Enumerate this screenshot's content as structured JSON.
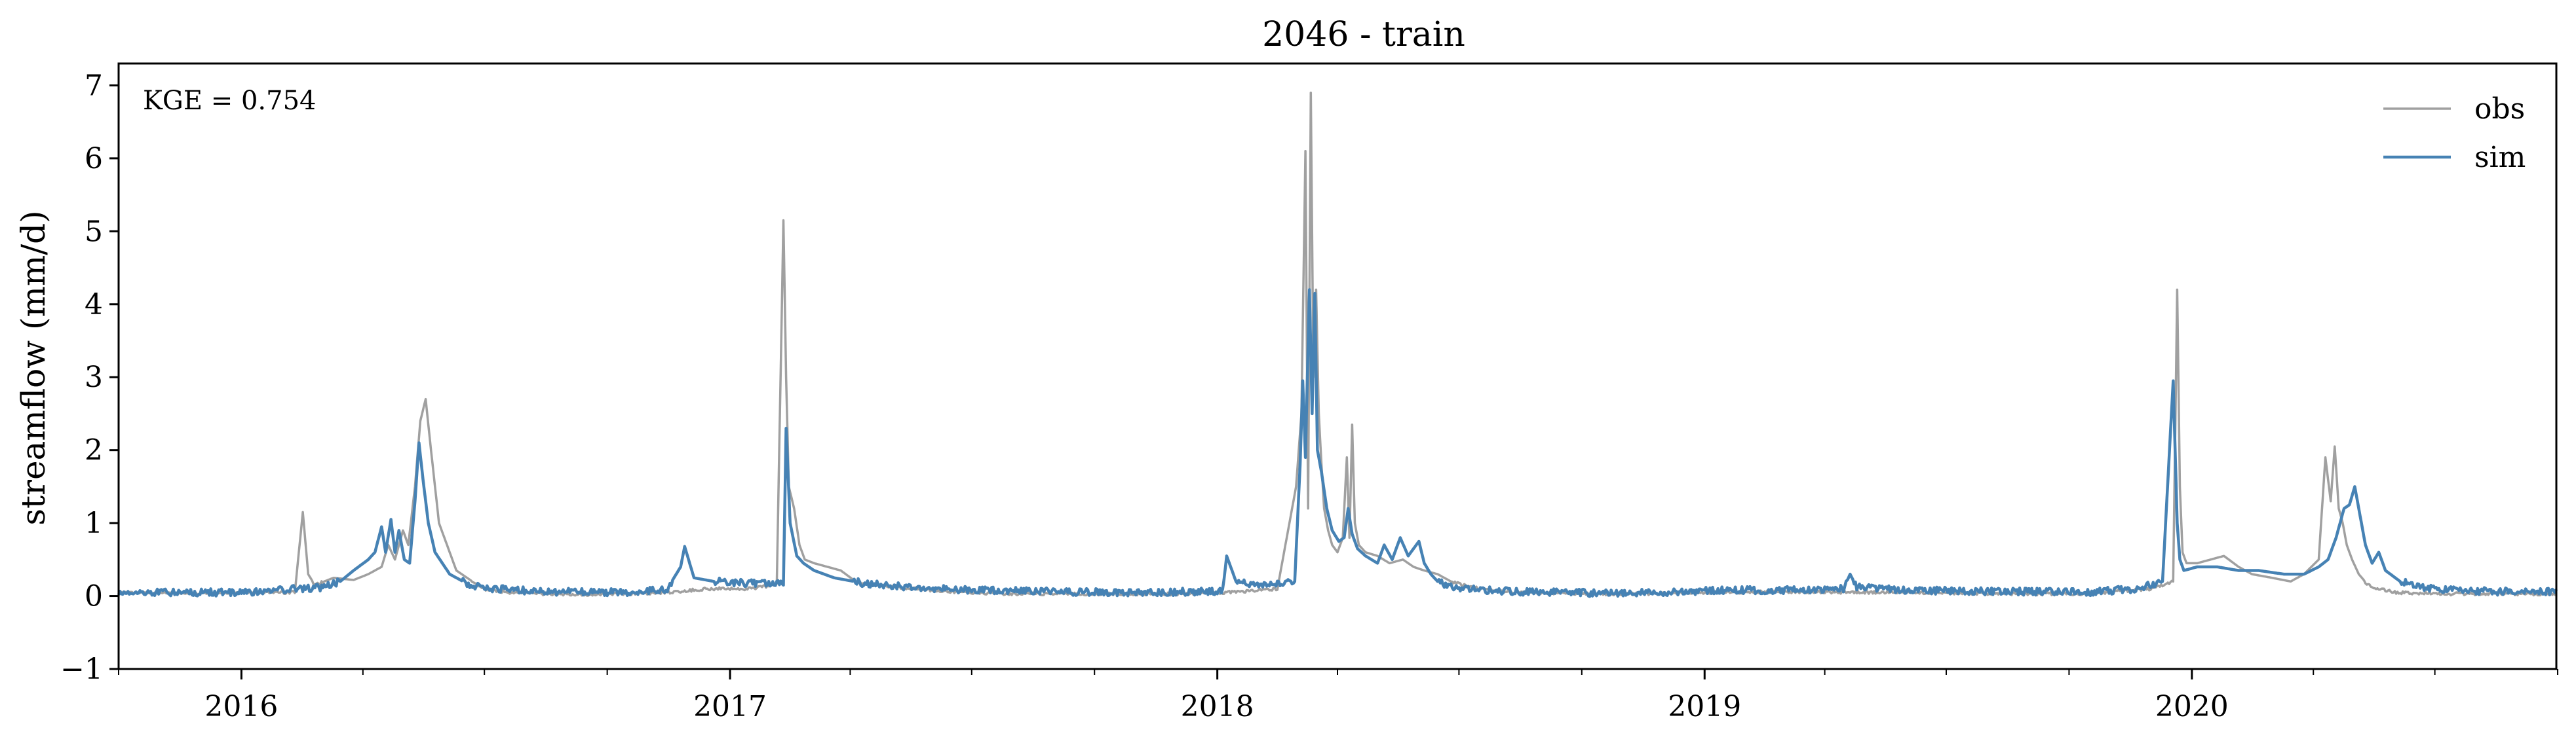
{
  "chart_data": {
    "type": "line",
    "title": "2046 - train",
    "xlabel": "",
    "ylabel": "streamflow (mm/d)",
    "xlim": [
      "2015-10-01",
      "2020-09-30"
    ],
    "ylim": [
      -1,
      7.3
    ],
    "x_ticks": [
      "2016",
      "2017",
      "2018",
      "2019",
      "2020"
    ],
    "y_ticks": [
      "−1",
      "0",
      "1",
      "2",
      "3",
      "4",
      "5",
      "6",
      "7"
    ],
    "grid": false,
    "legend_position": "top-right",
    "annotation": "KGE = 0.754",
    "colors": {
      "obs": "#a0a0a0",
      "sim": "#4682b4"
    },
    "series": [
      {
        "name": "obs",
        "x": [
          "2015-10-01",
          "2015-12-01",
          "2016-02-10",
          "2016-02-16",
          "2016-02-20",
          "2016-02-25",
          "2016-03-10",
          "2016-03-25",
          "2016-04-05",
          "2016-04-15",
          "2016-04-20",
          "2016-04-25",
          "2016-05-01",
          "2016-05-05",
          "2016-05-10",
          "2016-05-14",
          "2016-05-18",
          "2016-05-22",
          "2016-05-28",
          "2016-06-10",
          "2016-06-30",
          "2016-07-20",
          "2016-08-15",
          "2016-09-15",
          "2016-10-15",
          "2016-11-15",
          "2016-12-15",
          "2017-01-15",
          "2017-02-05",
          "2017-02-10",
          "2017-02-12",
          "2017-02-14",
          "2017-02-18",
          "2017-02-22",
          "2017-02-26",
          "2017-03-05",
          "2017-03-15",
          "2017-03-25",
          "2017-04-05",
          "2017-04-20",
          "2017-05-20",
          "2017-06-20",
          "2017-08-01",
          "2017-09-15",
          "2017-10-30",
          "2017-12-10",
          "2018-01-10",
          "2018-02-15",
          "2018-03-01",
          "2018-03-05",
          "2018-03-08",
          "2018-03-10",
          "2018-03-12",
          "2018-03-14",
          "2018-03-16",
          "2018-03-18",
          "2018-03-20",
          "2018-03-22",
          "2018-03-25",
          "2018-03-28",
          "2018-04-01",
          "2018-04-05",
          "2018-04-08",
          "2018-04-10",
          "2018-04-12",
          "2018-04-14",
          "2018-04-17",
          "2018-04-22",
          "2018-05-01",
          "2018-05-10",
          "2018-05-20",
          "2018-05-28",
          "2018-06-05",
          "2018-06-15",
          "2018-06-25",
          "2018-07-10",
          "2018-07-25",
          "2018-08-15",
          "2018-09-15",
          "2018-10-15",
          "2018-11-15",
          "2018-12-15",
          "2019-01-20",
          "2019-03-01",
          "2019-04-20",
          "2019-06-01",
          "2019-07-15",
          "2019-09-01",
          "2019-10-15",
          "2019-12-01",
          "2019-12-18",
          "2019-12-21",
          "2019-12-23",
          "2019-12-25",
          "2019-12-28",
          "2020-01-05",
          "2020-01-15",
          "2020-01-25",
          "2020-02-05",
          "2020-02-15",
          "2020-03-01",
          "2020-03-15",
          "2020-03-25",
          "2020-04-05",
          "2020-04-10",
          "2020-04-14",
          "2020-04-17",
          "2020-04-20",
          "2020-04-23",
          "2020-04-26",
          "2020-04-30",
          "2020-05-05",
          "2020-05-12",
          "2020-05-20",
          "2020-06-01",
          "2020-06-15",
          "2020-07-10",
          "2020-08-10",
          "2020-09-30"
        ],
        "y": [
          0.05,
          0.04,
          0.05,
          1.15,
          0.3,
          0.15,
          0.25,
          0.22,
          0.3,
          0.4,
          0.7,
          0.5,
          0.9,
          0.7,
          1.5,
          2.4,
          2.7,
          2.0,
          1.0,
          0.35,
          0.1,
          0.05,
          0.03,
          0.02,
          0.03,
          0.05,
          0.1,
          0.1,
          0.15,
          5.15,
          3.0,
          1.5,
          1.2,
          0.7,
          0.5,
          0.45,
          0.4,
          0.35,
          0.2,
          0.15,
          0.1,
          0.05,
          0.03,
          0.03,
          0.03,
          0.03,
          0.05,
          0.1,
          1.5,
          2.5,
          6.1,
          1.2,
          6.9,
          3.0,
          4.2,
          2.5,
          1.8,
          1.2,
          0.9,
          0.7,
          0.6,
          0.8,
          1.9,
          0.8,
          2.35,
          1.0,
          0.7,
          0.6,
          0.55,
          0.45,
          0.5,
          0.4,
          0.35,
          0.3,
          0.2,
          0.12,
          0.08,
          0.05,
          0.04,
          0.03,
          0.03,
          0.05,
          0.05,
          0.06,
          0.05,
          0.05,
          0.04,
          0.03,
          0.03,
          0.1,
          0.2,
          4.2,
          1.5,
          0.6,
          0.45,
          0.45,
          0.5,
          0.55,
          0.4,
          0.3,
          0.25,
          0.2,
          0.3,
          0.5,
          1.9,
          1.3,
          2.05,
          1.2,
          1.0,
          0.7,
          0.5,
          0.3,
          0.15,
          0.1,
          0.05,
          0.04,
          0.03,
          0.03,
          0.03
        ]
      },
      {
        "name": "sim",
        "x": [
          "2015-10-01",
          "2015-12-01",
          "2016-01-05",
          "2016-02-10",
          "2016-03-01",
          "2016-03-15",
          "2016-03-25",
          "2016-04-05",
          "2016-04-10",
          "2016-04-15",
          "2016-04-18",
          "2016-04-22",
          "2016-04-25",
          "2016-04-28",
          "2016-05-02",
          "2016-05-06",
          "2016-05-10",
          "2016-05-13",
          "2016-05-16",
          "2016-05-20",
          "2016-05-25",
          "2016-06-05",
          "2016-06-20",
          "2016-07-10",
          "2016-08-15",
          "2016-09-15",
          "2016-10-15",
          "2016-11-15",
          "2016-11-25",
          "2016-11-28",
          "2016-12-05",
          "2016-12-20",
          "2017-01-10",
          "2017-02-05",
          "2017-02-10",
          "2017-02-12",
          "2017-02-15",
          "2017-02-20",
          "2017-02-25",
          "2017-03-05",
          "2017-03-20",
          "2017-04-10",
          "2017-05-15",
          "2017-07-01",
          "2017-09-01",
          "2017-10-30",
          "2017-12-15",
          "2018-01-05",
          "2018-01-08",
          "2018-01-15",
          "2018-02-01",
          "2018-02-15",
          "2018-02-28",
          "2018-03-04",
          "2018-03-06",
          "2018-03-08",
          "2018-03-11",
          "2018-03-13",
          "2018-03-15",
          "2018-03-17",
          "2018-03-20",
          "2018-03-24",
          "2018-03-28",
          "2018-04-02",
          "2018-04-06",
          "2018-04-09",
          "2018-04-12",
          "2018-04-16",
          "2018-04-22",
          "2018-05-01",
          "2018-05-06",
          "2018-05-12",
          "2018-05-18",
          "2018-05-24",
          "2018-06-01",
          "2018-06-05",
          "2018-06-10",
          "2018-06-15",
          "2018-06-25",
          "2018-07-10",
          "2018-07-25",
          "2018-08-15",
          "2018-09-15",
          "2018-10-15",
          "2018-11-15",
          "2018-12-15",
          "2019-01-20",
          "2019-03-01",
          "2019-04-15",
          "2019-04-20",
          "2019-04-25",
          "2019-06-01",
          "2019-07-15",
          "2019-09-01",
          "2019-10-15",
          "2019-11-20",
          "2019-12-10",
          "2019-12-18",
          "2019-12-21",
          "2019-12-23",
          "2019-12-26",
          "2020-01-05",
          "2020-01-20",
          "2020-02-05",
          "2020-02-20",
          "2020-03-10",
          "2020-03-25",
          "2020-04-05",
          "2020-04-12",
          "2020-04-18",
          "2020-04-24",
          "2020-04-28",
          "2020-05-02",
          "2020-05-06",
          "2020-05-10",
          "2020-05-15",
          "2020-05-20",
          "2020-05-25",
          "2020-06-05",
          "2020-06-20",
          "2020-07-15",
          "2020-08-15",
          "2020-09-30"
        ],
        "y": [
          0.05,
          0.05,
          0.05,
          0.1,
          0.12,
          0.2,
          0.35,
          0.5,
          0.6,
          0.95,
          0.6,
          1.05,
          0.6,
          0.9,
          0.5,
          0.45,
          1.3,
          2.1,
          1.6,
          1.0,
          0.6,
          0.3,
          0.15,
          0.1,
          0.06,
          0.06,
          0.05,
          0.1,
          0.4,
          0.68,
          0.25,
          0.2,
          0.18,
          0.16,
          0.17,
          2.3,
          1.0,
          0.55,
          0.45,
          0.35,
          0.25,
          0.18,
          0.12,
          0.08,
          0.06,
          0.05,
          0.06,
          0.06,
          0.55,
          0.2,
          0.15,
          0.18,
          0.2,
          1.8,
          2.95,
          1.9,
          4.2,
          2.5,
          4.15,
          2.0,
          1.7,
          1.2,
          0.9,
          0.75,
          0.8,
          1.2,
          0.85,
          0.65,
          0.55,
          0.45,
          0.7,
          0.5,
          0.8,
          0.55,
          0.75,
          0.45,
          0.3,
          0.2,
          0.12,
          0.1,
          0.08,
          0.06,
          0.05,
          0.04,
          0.05,
          0.06,
          0.08,
          0.08,
          0.1,
          0.3,
          0.12,
          0.08,
          0.07,
          0.06,
          0.05,
          0.1,
          0.2,
          2.95,
          1.0,
          0.5,
          0.35,
          0.4,
          0.4,
          0.35,
          0.35,
          0.3,
          0.3,
          0.4,
          0.5,
          0.8,
          1.2,
          1.25,
          1.5,
          1.1,
          0.7,
          0.45,
          0.6,
          0.35,
          0.2,
          0.12,
          0.08,
          0.06,
          0.06
        ]
      }
    ]
  }
}
